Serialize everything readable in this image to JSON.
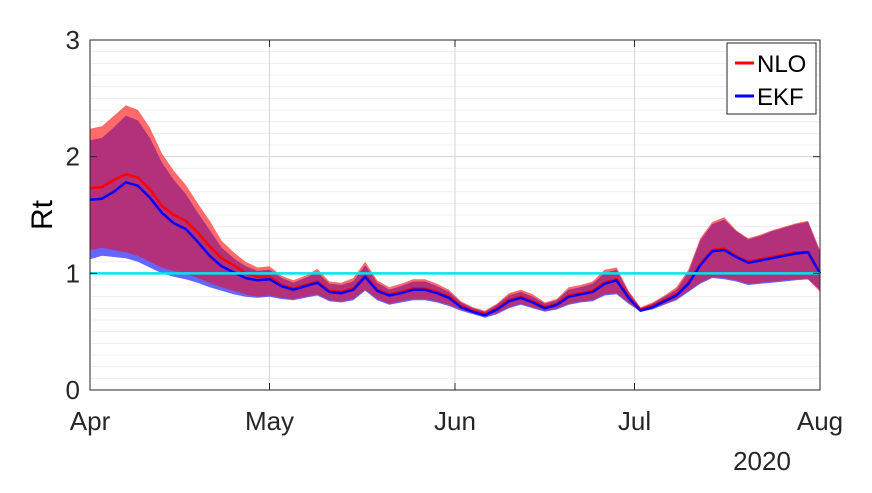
{
  "chart_data": {
    "type": "area",
    "title": "",
    "xlabel": "",
    "ylabel": "Rt",
    "year_label": "2020",
    "x_ticks": [
      "Apr",
      "May",
      "Jun",
      "Jul",
      "Aug"
    ],
    "y_ticks": [
      "0",
      "1",
      "2",
      "3"
    ],
    "ylim": [
      0,
      3
    ],
    "xlim": [
      "2020-04-01",
      "2020-08-01"
    ],
    "grid": true,
    "legend_position": "top-right",
    "reference_line": {
      "y": 1,
      "color": "#00E5EE"
    },
    "dates": [
      "2020-04-01",
      "2020-04-03",
      "2020-04-05",
      "2020-04-07",
      "2020-04-09",
      "2020-04-11",
      "2020-04-13",
      "2020-04-15",
      "2020-04-17",
      "2020-04-19",
      "2020-04-21",
      "2020-04-23",
      "2020-04-25",
      "2020-04-27",
      "2020-04-29",
      "2020-05-01",
      "2020-05-03",
      "2020-05-05",
      "2020-05-07",
      "2020-05-09",
      "2020-05-11",
      "2020-05-13",
      "2020-05-15",
      "2020-05-17",
      "2020-05-19",
      "2020-05-21",
      "2020-05-23",
      "2020-05-25",
      "2020-05-27",
      "2020-05-29",
      "2020-05-31",
      "2020-06-02",
      "2020-06-04",
      "2020-06-06",
      "2020-06-08",
      "2020-06-10",
      "2020-06-12",
      "2020-06-14",
      "2020-06-16",
      "2020-06-18",
      "2020-06-20",
      "2020-06-22",
      "2020-06-24",
      "2020-06-26",
      "2020-06-28",
      "2020-06-30",
      "2020-07-02",
      "2020-07-04",
      "2020-07-06",
      "2020-07-08",
      "2020-07-10",
      "2020-07-12",
      "2020-07-14",
      "2020-07-16",
      "2020-07-18",
      "2020-07-20",
      "2020-07-22",
      "2020-07-24",
      "2020-07-26",
      "2020-07-28",
      "2020-07-30",
      "2020-08-01"
    ],
    "series": [
      {
        "name": "NLO",
        "color": "#FF0000",
        "band_color": "#FF5A5A",
        "values": [
          1.73,
          1.74,
          1.8,
          1.85,
          1.82,
          1.72,
          1.58,
          1.5,
          1.45,
          1.35,
          1.23,
          1.13,
          1.07,
          1.0,
          0.97,
          0.97,
          0.9,
          0.87,
          0.9,
          0.93,
          0.85,
          0.84,
          0.87,
          0.98,
          0.86,
          0.82,
          0.84,
          0.87,
          0.87,
          0.84,
          0.8,
          0.72,
          0.68,
          0.65,
          0.7,
          0.77,
          0.8,
          0.76,
          0.71,
          0.74,
          0.81,
          0.83,
          0.85,
          0.92,
          0.95,
          0.8,
          0.69,
          0.72,
          0.77,
          0.82,
          0.92,
          1.08,
          1.2,
          1.21,
          1.15,
          1.1,
          1.12,
          1.14,
          1.16,
          1.18,
          1.18,
          1.0
        ],
        "lower": [
          1.2,
          1.22,
          1.2,
          1.18,
          1.15,
          1.1,
          1.05,
          1.02,
          1.0,
          0.96,
          0.92,
          0.88,
          0.85,
          0.82,
          0.8,
          0.81,
          0.79,
          0.78,
          0.8,
          0.82,
          0.77,
          0.76,
          0.78,
          0.86,
          0.78,
          0.74,
          0.76,
          0.78,
          0.78,
          0.76,
          0.73,
          0.69,
          0.66,
          0.63,
          0.66,
          0.71,
          0.74,
          0.71,
          0.68,
          0.7,
          0.74,
          0.76,
          0.77,
          0.82,
          0.83,
          0.75,
          0.68,
          0.7,
          0.74,
          0.78,
          0.85,
          0.92,
          0.97,
          0.96,
          0.94,
          0.91,
          0.92,
          0.93,
          0.94,
          0.95,
          0.95,
          0.84
        ],
        "upper": [
          2.24,
          2.26,
          2.35,
          2.44,
          2.4,
          2.25,
          2.03,
          1.88,
          1.76,
          1.6,
          1.45,
          1.28,
          1.18,
          1.1,
          1.05,
          1.06,
          0.98,
          0.94,
          0.98,
          1.04,
          0.93,
          0.92,
          0.96,
          1.1,
          0.94,
          0.88,
          0.91,
          0.95,
          0.95,
          0.91,
          0.86,
          0.76,
          0.71,
          0.68,
          0.74,
          0.83,
          0.86,
          0.82,
          0.75,
          0.78,
          0.88,
          0.9,
          0.93,
          1.03,
          1.05,
          0.85,
          0.71,
          0.75,
          0.81,
          0.88,
          1.03,
          1.3,
          1.44,
          1.48,
          1.37,
          1.3,
          1.33,
          1.37,
          1.4,
          1.43,
          1.45,
          1.2
        ]
      },
      {
        "name": "EKF",
        "color": "#0000FF",
        "band_color": "#4A4AFF",
        "values": [
          1.63,
          1.64,
          1.7,
          1.78,
          1.75,
          1.65,
          1.52,
          1.43,
          1.38,
          1.27,
          1.15,
          1.06,
          1.01,
          0.96,
          0.94,
          0.95,
          0.89,
          0.86,
          0.89,
          0.92,
          0.84,
          0.83,
          0.86,
          0.97,
          0.85,
          0.81,
          0.83,
          0.86,
          0.86,
          0.83,
          0.79,
          0.71,
          0.67,
          0.64,
          0.69,
          0.76,
          0.79,
          0.75,
          0.7,
          0.73,
          0.8,
          0.82,
          0.84,
          0.91,
          0.94,
          0.79,
          0.68,
          0.71,
          0.76,
          0.81,
          0.91,
          1.07,
          1.19,
          1.2,
          1.14,
          1.09,
          1.11,
          1.13,
          1.15,
          1.17,
          1.18,
          1.0
        ],
        "lower": [
          1.12,
          1.15,
          1.14,
          1.13,
          1.1,
          1.05,
          1.0,
          0.97,
          0.95,
          0.92,
          0.88,
          0.85,
          0.82,
          0.8,
          0.79,
          0.8,
          0.78,
          0.77,
          0.79,
          0.81,
          0.76,
          0.75,
          0.77,
          0.85,
          0.77,
          0.73,
          0.75,
          0.77,
          0.77,
          0.75,
          0.72,
          0.68,
          0.65,
          0.62,
          0.65,
          0.7,
          0.73,
          0.7,
          0.67,
          0.69,
          0.73,
          0.75,
          0.76,
          0.81,
          0.82,
          0.74,
          0.67,
          0.69,
          0.73,
          0.77,
          0.84,
          0.91,
          0.96,
          0.95,
          0.93,
          0.9,
          0.91,
          0.92,
          0.93,
          0.94,
          0.95,
          0.86
        ],
        "upper": [
          2.14,
          2.16,
          2.25,
          2.35,
          2.31,
          2.16,
          1.95,
          1.8,
          1.68,
          1.52,
          1.37,
          1.22,
          1.13,
          1.06,
          1.02,
          1.03,
          0.96,
          0.92,
          0.96,
          1.01,
          0.91,
          0.9,
          0.93,
          1.07,
          0.92,
          0.86,
          0.89,
          0.93,
          0.93,
          0.89,
          0.84,
          0.75,
          0.7,
          0.67,
          0.73,
          0.81,
          0.84,
          0.8,
          0.74,
          0.77,
          0.86,
          0.88,
          0.91,
          1.0,
          1.03,
          0.84,
          0.7,
          0.74,
          0.8,
          0.86,
          1.01,
          1.28,
          1.42,
          1.46,
          1.36,
          1.29,
          1.32,
          1.36,
          1.39,
          1.42,
          1.44,
          1.18
        ]
      }
    ]
  }
}
